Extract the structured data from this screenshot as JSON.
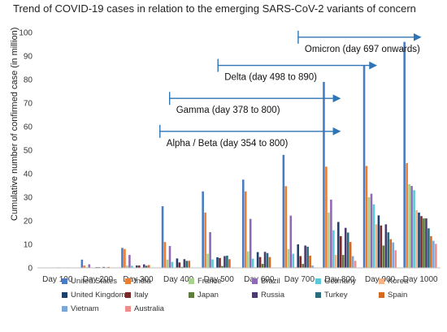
{
  "chart_data": {
    "type": "bar",
    "title": "Trend of COVID-19 cases in relation to the emerging SARS-CoV-2 variants of concern",
    "ylabel": "Cumulative number of confirmed case (in million)",
    "xlabel": "",
    "ylim": [
      0,
      100
    ],
    "yticks": [
      0,
      10,
      20,
      30,
      40,
      50,
      60,
      70,
      80,
      90,
      100
    ],
    "grid": false,
    "legend_position": "bottom",
    "categories": [
      "Day 100",
      "Day 200",
      "Day 300",
      "Day 400",
      "Day 500",
      "Day 600",
      "Day 700",
      "Day 800",
      "Day 900",
      "Day 1000"
    ],
    "series": [
      {
        "name": "United States",
        "color": "#4a7cc4",
        "values": [
          0.1,
          3.5,
          8.5,
          26.2,
          32.5,
          37.5,
          48.0,
          79.0,
          86.0,
          96.0
        ]
      },
      {
        "name": "India",
        "color": "#ed7d31",
        "values": [
          0.0,
          1.0,
          8.0,
          11.0,
          23.5,
          32.5,
          34.7,
          43.0,
          43.3,
          44.5
        ]
      },
      {
        "name": "France",
        "color": "#a9d18e",
        "values": [
          0.0,
          0.3,
          1.0,
          3.5,
          6.0,
          7.0,
          8.0,
          23.5,
          30.0,
          35.5
        ]
      },
      {
        "name": "Brazil",
        "color": "#8e6ab4",
        "values": [
          0.0,
          1.5,
          5.5,
          9.3,
          15.2,
          20.8,
          22.2,
          29.0,
          31.5,
          34.8
        ]
      },
      {
        "name": "Germany",
        "color": "#5bc8d9",
        "values": [
          0.0,
          0.2,
          0.9,
          2.5,
          3.6,
          3.9,
          6.0,
          16.0,
          27.0,
          33.0
        ]
      },
      {
        "name": "Korea",
        "color": "#f4b183",
        "values": [
          0.0,
          0.0,
          0.0,
          0.1,
          0.1,
          0.3,
          0.4,
          5.5,
          18.5,
          24.5
        ]
      },
      {
        "name": "United Kingdom",
        "color": "#1f3f6e",
        "values": [
          0.0,
          0.3,
          1.0,
          4.0,
          4.5,
          6.7,
          10.0,
          19.5,
          22.3,
          23.5
        ]
      },
      {
        "name": "Italy",
        "color": "#7b2a2a",
        "values": [
          0.2,
          0.3,
          1.0,
          2.3,
          4.2,
          4.6,
          5.0,
          13.5,
          18.0,
          22.0
        ]
      },
      {
        "name": "Japan",
        "color": "#5e7c3a",
        "values": [
          0.0,
          0.0,
          0.1,
          0.4,
          0.8,
          1.7,
          1.7,
          5.5,
          9.5,
          21.0
        ]
      },
      {
        "name": "Russia",
        "color": "#4b3a6e",
        "values": [
          0.0,
          0.4,
          1.5,
          3.7,
          5.0,
          6.8,
          9.5,
          17.0,
          18.5,
          21.0
        ]
      },
      {
        "name": "Turkey",
        "color": "#2a6b7c",
        "values": [
          0.1,
          0.2,
          0.9,
          3.0,
          5.2,
          6.3,
          9.0,
          15.0,
          15.1,
          16.8
        ]
      },
      {
        "name": "Spain",
        "color": "#d46a1f",
        "values": [
          0.2,
          0.4,
          1.2,
          3.0,
          3.7,
          4.6,
          5.2,
          11.0,
          12.2,
          13.5
        ]
      },
      {
        "name": "Vietnam",
        "color": "#7aa6d8",
        "values": [
          0.0,
          0.0,
          0.0,
          0.0,
          0.0,
          0.0,
          1.0,
          5.0,
          10.8,
          11.5
        ]
      },
      {
        "name": "Australia",
        "color": "#f08c8c",
        "values": [
          0.0,
          0.0,
          0.0,
          0.0,
          0.0,
          0.0,
          0.1,
          3.0,
          7.5,
          10.2
        ]
      }
    ],
    "annotations": [
      {
        "label": "Alpha / Beta (day 354 to 800)",
        "start_day": 354,
        "end_day": 800,
        "y": 58
      },
      {
        "label": "Gamma (day 378 to 800)",
        "start_day": 378,
        "end_day": 800,
        "y": 72
      },
      {
        "label": "Delta (day 498 to 890)",
        "start_day": 498,
        "end_day": 890,
        "y": 86
      },
      {
        "label": "Omicron (day 697 onwards)",
        "start_day": 697,
        "end_day": 1000,
        "y": 98
      }
    ]
  }
}
